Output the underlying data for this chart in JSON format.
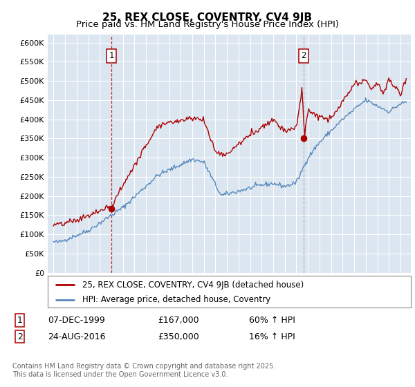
{
  "title": "25, REX CLOSE, COVENTRY, CV4 9JB",
  "subtitle": "Price paid vs. HM Land Registry's House Price Index (HPI)",
  "ylim": [
    0,
    620000
  ],
  "yticks": [
    0,
    50000,
    100000,
    150000,
    200000,
    250000,
    300000,
    350000,
    400000,
    450000,
    500000,
    550000,
    600000
  ],
  "ytick_labels": [
    "£0",
    "£50K",
    "£100K",
    "£150K",
    "£200K",
    "£250K",
    "£300K",
    "£350K",
    "£400K",
    "£450K",
    "£500K",
    "£550K",
    "£600K"
  ],
  "background_color": "#dce6f1",
  "grid_color": "#ffffff",
  "red_line_color": "#aa0000",
  "blue_line_color": "#5588bb",
  "sale1_year": 2000.0,
  "sale1_price": 167000,
  "sale2_year": 2016.65,
  "sale2_price": 350000,
  "legend_entry1": "25, REX CLOSE, COVENTRY, CV4 9JB (detached house)",
  "legend_entry2": "HPI: Average price, detached house, Coventry",
  "table_row1": [
    "1",
    "07-DEC-1999",
    "£167,000",
    "60% ↑ HPI"
  ],
  "table_row2": [
    "2",
    "24-AUG-2016",
    "£350,000",
    "16% ↑ HPI"
  ],
  "footnote": "Contains HM Land Registry data © Crown copyright and database right 2025.\nThis data is licensed under the Open Government Licence v3.0.",
  "title_fontsize": 11,
  "subtitle_fontsize": 9.5,
  "tick_fontsize": 8,
  "legend_fontsize": 8.5,
  "table_fontsize": 9
}
